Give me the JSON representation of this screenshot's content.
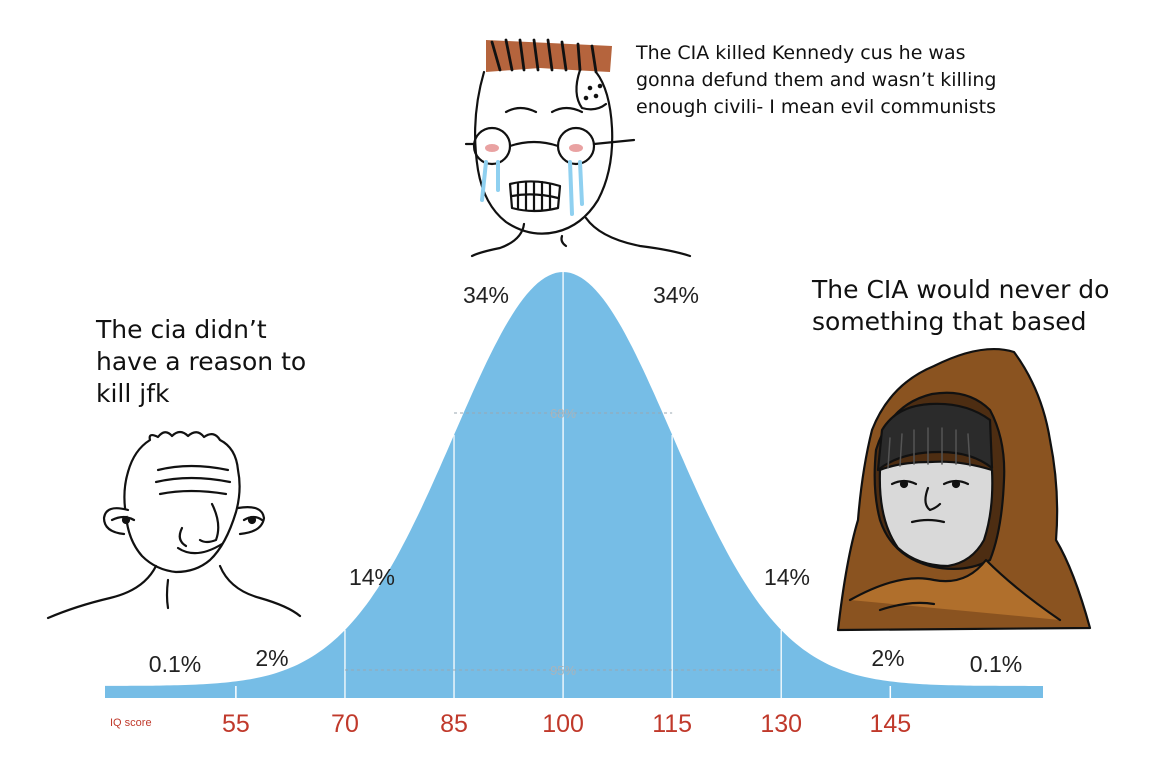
{
  "captions": {
    "top": "The CIA killed Kennedy cus he was gonna defund them and wasn’t killing enough civili- I mean evil communists",
    "left": "The cia didn’t have a reason to kill jfk",
    "right": "The CIA would never do something that based"
  },
  "colors": {
    "curve": "#76bde6",
    "tick_label": "#c0392b",
    "percent_label": "#222222",
    "hair_top": "#b5643d",
    "hood": "#8a5320",
    "tears": "#8fd0f0"
  },
  "icons": {
    "left": "wojak-brainlet-icon",
    "center": "crying-nerd-wojak-icon",
    "right": "hooded-monk-wojak-icon"
  },
  "chart_data": {
    "type": "area",
    "title": "",
    "xlabel": "IQ score",
    "ylabel": "",
    "mean": 100,
    "sd": 15,
    "xlim": [
      37,
      166
    ],
    "x_ticks": [
      55,
      70,
      85,
      100,
      115,
      130,
      145
    ],
    "bands": [
      {
        "range": [
          40,
          55
        ],
        "percent": "0.1%"
      },
      {
        "range": [
          55,
          70
        ],
        "percent": "2%"
      },
      {
        "range": [
          70,
          85
        ],
        "percent": "14%"
      },
      {
        "range": [
          85,
          100
        ],
        "percent": "34%"
      },
      {
        "range": [
          100,
          115
        ],
        "percent": "34%"
      },
      {
        "range": [
          115,
          130
        ],
        "percent": "14%"
      },
      {
        "range": [
          130,
          145
        ],
        "percent": "2%"
      },
      {
        "range": [
          145,
          160
        ],
        "percent": "0.1%"
      }
    ],
    "intervals": [
      {
        "range": [
          85,
          115
        ],
        "label": "68%"
      },
      {
        "range": [
          70,
          130
        ],
        "label": "95%"
      }
    ]
  }
}
